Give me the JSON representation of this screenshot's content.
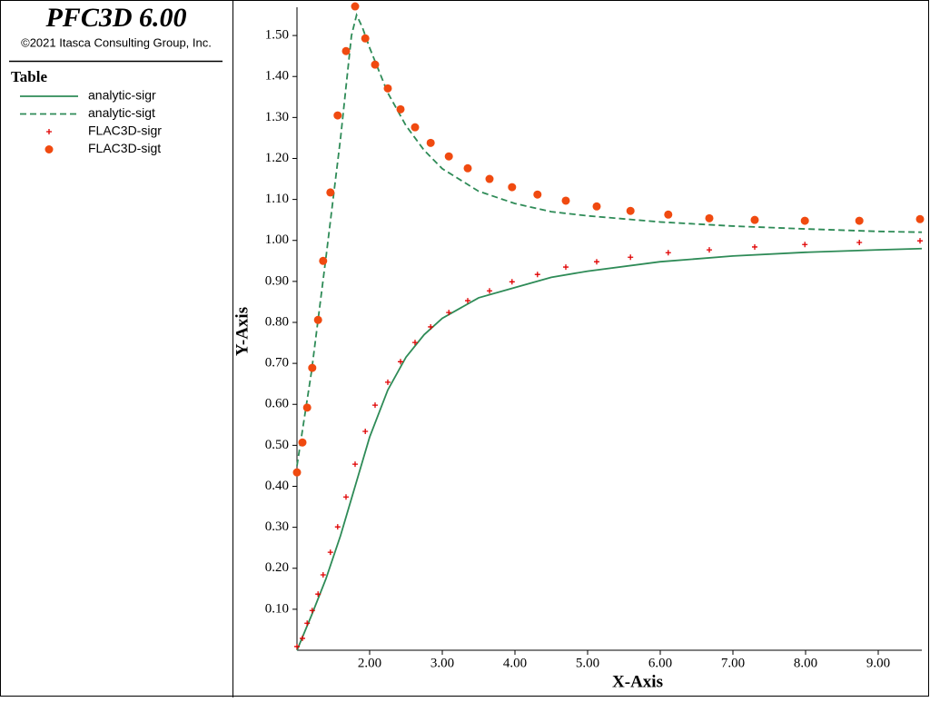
{
  "header": {
    "title": "PFC3D 6.00",
    "copyright": "©2021 Itasca Consulting Group, Inc."
  },
  "legend_title": "Table",
  "chart_data": {
    "type": "line",
    "x_label": "X-Axis",
    "y_label": "Y-Axis",
    "xlim": [
      1,
      9.6
    ],
    "ylim": [
      0,
      1.58
    ],
    "xticks": [
      {
        "value": 2,
        "label": "2.00"
      },
      {
        "value": 3,
        "label": "3.00"
      },
      {
        "value": 4,
        "label": "4.00"
      },
      {
        "value": 5,
        "label": "5.00"
      },
      {
        "value": 6,
        "label": "6.00"
      },
      {
        "value": 7,
        "label": "7.00"
      },
      {
        "value": 8,
        "label": "8.00"
      },
      {
        "value": 9,
        "label": "9.00"
      }
    ],
    "yticks": [
      {
        "value": 0.1,
        "label": "0.10"
      },
      {
        "value": 0.2,
        "label": "0.20"
      },
      {
        "value": 0.3,
        "label": "0.30"
      },
      {
        "value": 0.4,
        "label": "0.40"
      },
      {
        "value": 0.5,
        "label": "0.50"
      },
      {
        "value": 0.6,
        "label": "0.60"
      },
      {
        "value": 0.7,
        "label": "0.70"
      },
      {
        "value": 0.8,
        "label": "0.80"
      },
      {
        "value": 0.9,
        "label": "0.90"
      },
      {
        "value": 1.0,
        "label": "1.00"
      },
      {
        "value": 1.1,
        "label": "1.10"
      },
      {
        "value": 1.2,
        "label": "1.20"
      },
      {
        "value": 1.3,
        "label": "1.30"
      },
      {
        "value": 1.4,
        "label": "1.40"
      },
      {
        "value": 1.5,
        "label": "1.50"
      }
    ],
    "series": [
      {
        "name": "analytic-sigr",
        "kind": "line",
        "dash": false,
        "color": "#2e8b57",
        "x": [
          1.0,
          1.2,
          1.4,
          1.6,
          1.8,
          2.0,
          2.25,
          2.5,
          2.75,
          3.0,
          3.5,
          4.0,
          4.5,
          5.0,
          6.0,
          7.0,
          8.0,
          9.0,
          9.6
        ],
        "values": [
          0.0,
          0.085,
          0.175,
          0.28,
          0.4,
          0.52,
          0.635,
          0.715,
          0.77,
          0.81,
          0.86,
          0.885,
          0.91,
          0.925,
          0.948,
          0.962,
          0.971,
          0.977,
          0.98
        ]
      },
      {
        "name": "analytic-sigt",
        "kind": "line",
        "dash": true,
        "color": "#2e8b57",
        "x": [
          1.0,
          1.2,
          1.4,
          1.6,
          1.75,
          1.82,
          1.9,
          2.0,
          2.25,
          2.5,
          2.75,
          3.0,
          3.5,
          4.0,
          4.5,
          5.0,
          6.0,
          7.0,
          8.0,
          9.0,
          9.6
        ],
        "values": [
          0.45,
          0.68,
          0.96,
          1.25,
          1.5,
          1.55,
          1.52,
          1.47,
          1.36,
          1.28,
          1.22,
          1.175,
          1.12,
          1.09,
          1.07,
          1.06,
          1.045,
          1.035,
          1.028,
          1.022,
          1.02
        ]
      },
      {
        "name": "FLAC3D-sigr",
        "kind": "scatter",
        "marker": "plus",
        "color": "#e00000",
        "x": [
          1.0,
          1.075,
          1.14,
          1.21,
          1.29,
          1.36,
          1.46,
          1.56,
          1.675,
          1.8,
          1.94,
          2.075,
          2.25,
          2.425,
          2.625,
          2.84,
          3.09,
          3.35,
          3.65,
          3.96,
          4.31,
          4.7,
          5.125,
          5.59,
          6.11,
          6.675,
          7.3,
          7.99,
          8.74,
          9.575
        ],
        "values": [
          0.009,
          0.029,
          0.066,
          0.097,
          0.137,
          0.184,
          0.239,
          0.301,
          0.374,
          0.454,
          0.534,
          0.598,
          0.654,
          0.704,
          0.751,
          0.789,
          0.824,
          0.853,
          0.877,
          0.899,
          0.917,
          0.935,
          0.948,
          0.959,
          0.97,
          0.977,
          0.984,
          0.99,
          0.995,
          0.999
        ]
      },
      {
        "name": "FLAC3D-sigt",
        "kind": "scatter",
        "marker": "circle",
        "color": "#f04a10",
        "x": [
          1.0,
          1.075,
          1.14,
          1.21,
          1.29,
          1.36,
          1.46,
          1.56,
          1.675,
          1.8,
          1.94,
          2.075,
          2.25,
          2.425,
          2.625,
          2.84,
          3.09,
          3.35,
          3.65,
          3.96,
          4.31,
          4.7,
          5.125,
          5.59,
          6.11,
          6.675,
          7.3,
          7.99,
          8.74,
          9.575
        ],
        "values": [
          0.434,
          0.507,
          0.592,
          0.689,
          0.806,
          0.95,
          1.117,
          1.305,
          1.462,
          1.571,
          1.493,
          1.429,
          1.371,
          1.32,
          1.276,
          1.238,
          1.205,
          1.176,
          1.15,
          1.13,
          1.112,
          1.097,
          1.083,
          1.072,
          1.063,
          1.054,
          1.05,
          1.048,
          1.048,
          1.052
        ]
      }
    ]
  }
}
